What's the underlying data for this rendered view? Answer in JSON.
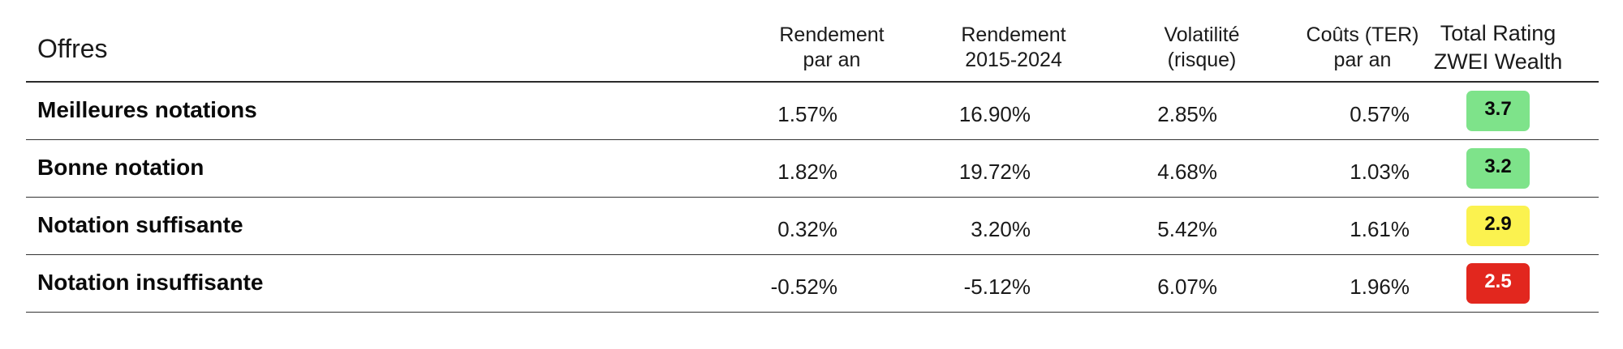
{
  "table": {
    "first_header": "Offres",
    "columns": [
      {
        "line1": "Rendement",
        "line2": "par an"
      },
      {
        "line1": "Rendement",
        "line2": "2015-2024"
      },
      {
        "line1": "Volatilité",
        "line2": "(risque)"
      },
      {
        "line1": "Coûts (TER)",
        "line2": "par an"
      },
      {
        "line1": "Total Rating",
        "line2": "ZWEI Wealth"
      }
    ],
    "rows": [
      {
        "label": "Meilleures notations",
        "values": [
          "1.57%",
          "16.90%",
          "2.85%",
          "0.57%"
        ],
        "rating": "3.7",
        "rating_color": "#7ee38a",
        "rating_text_color": "#0a0a0a"
      },
      {
        "label": "Bonne notation",
        "values": [
          "1.82%",
          "19.72%",
          "4.68%",
          "1.03%"
        ],
        "rating": "3.2",
        "rating_color": "#7ee38a",
        "rating_text_color": "#0a0a0a"
      },
      {
        "label": "Notation suffisante",
        "values": [
          "0.32%",
          "3.20%",
          "5.42%",
          "1.61%"
        ],
        "rating": "2.9",
        "rating_color": "#fbf24f",
        "rating_text_color": "#0a0a0a"
      },
      {
        "label": "Notation insuffisante",
        "values": [
          "-0.52%",
          "-5.12%",
          "6.07%",
          "1.96%"
        ],
        "rating": "2.5",
        "rating_color": "#e2271e",
        "rating_text_color": "#ffffff"
      }
    ]
  }
}
